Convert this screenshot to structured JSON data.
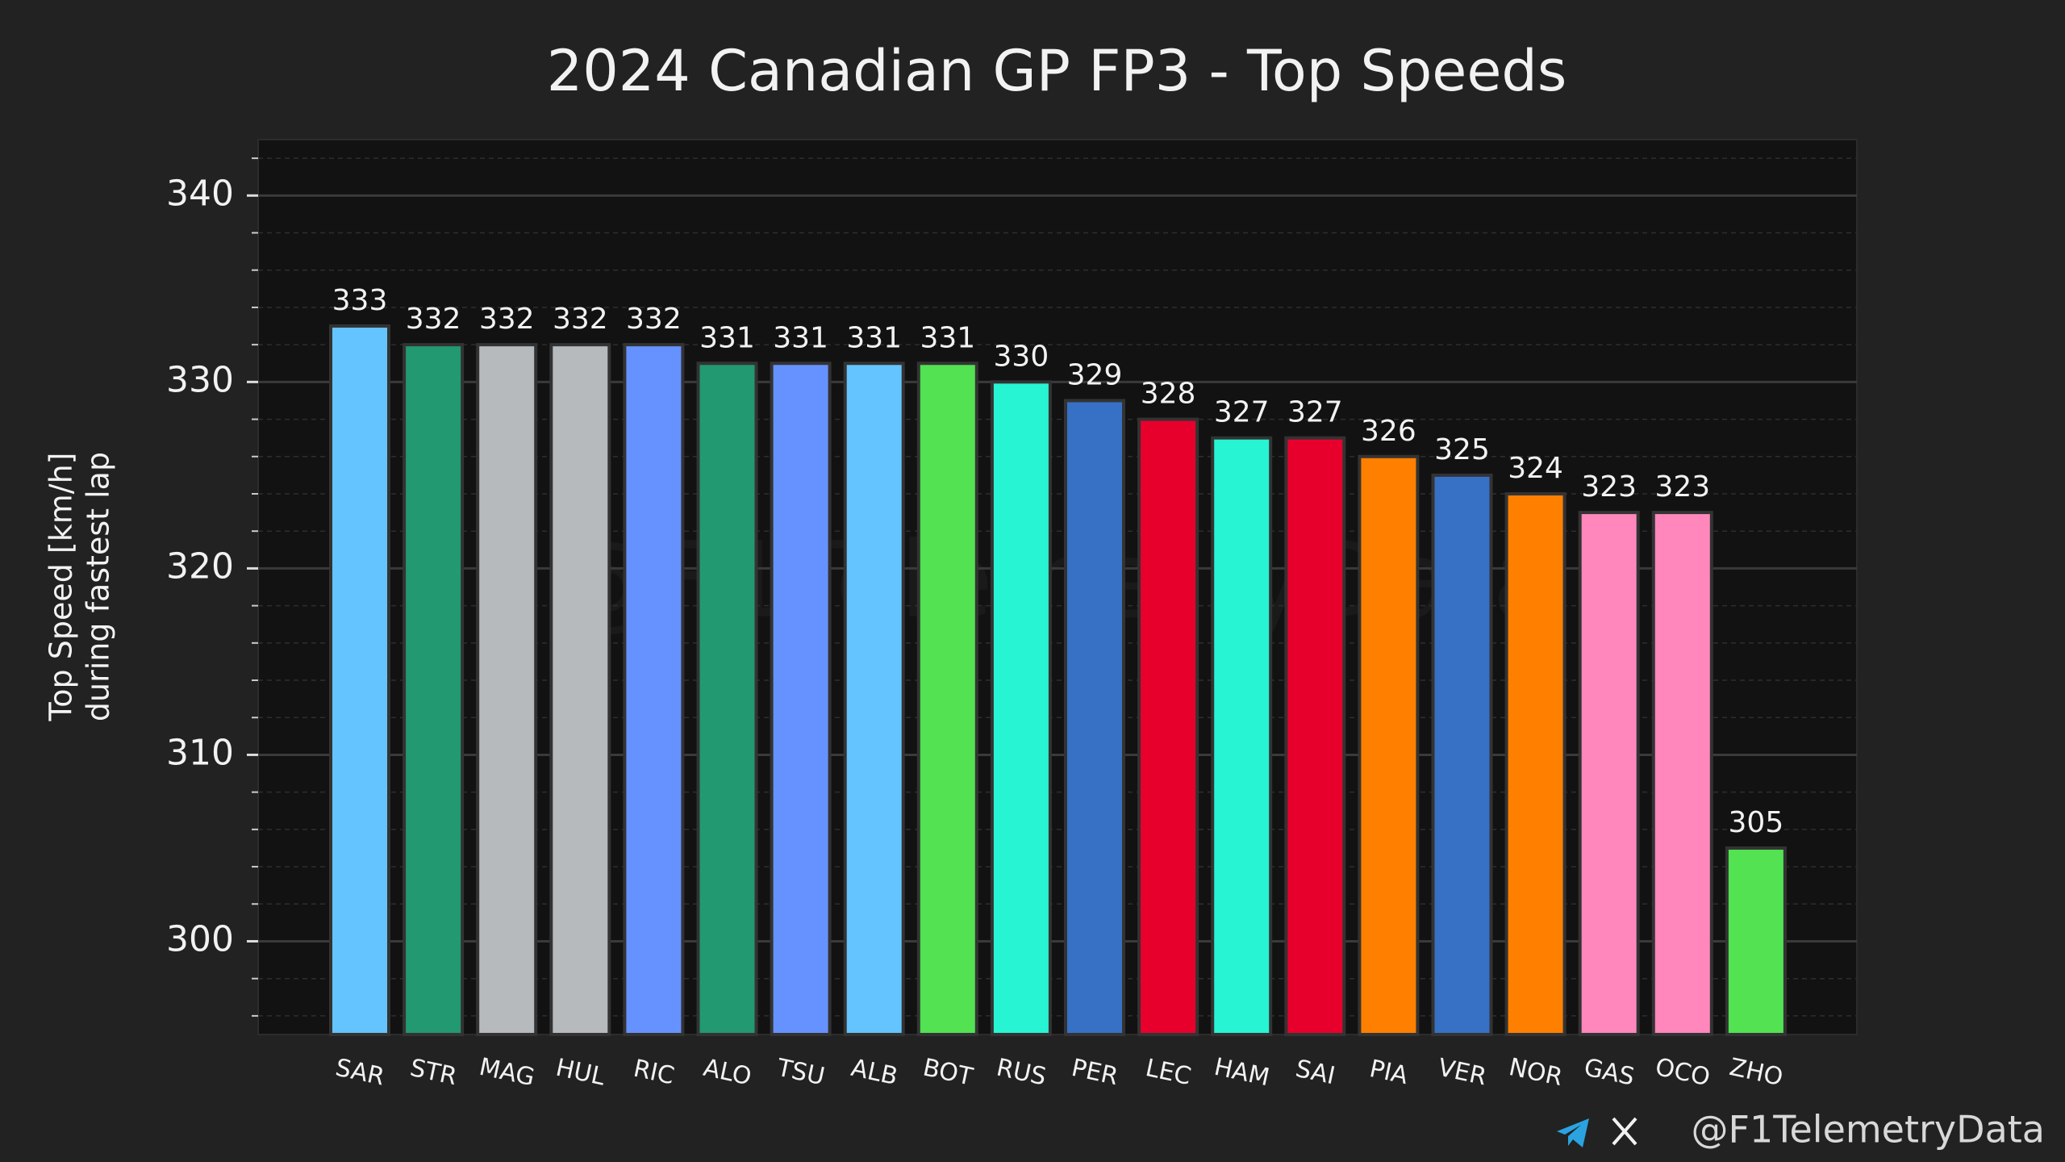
{
  "chart_data": {
    "type": "bar",
    "title": "2024 Canadian GP FP3 - Top Speeds",
    "ylabel": [
      "Top Speed [km/h]",
      "during fastest lap"
    ],
    "categories": [
      "SAR",
      "STR",
      "MAG",
      "HUL",
      "RIC",
      "ALO",
      "TSU",
      "ALB",
      "BOT",
      "RUS",
      "PER",
      "LEC",
      "HAM",
      "SAI",
      "PIA",
      "VER",
      "NOR",
      "GAS",
      "OCO",
      "ZHO"
    ],
    "values": [
      333,
      332,
      332,
      332,
      332,
      331,
      331,
      331,
      331,
      330,
      329,
      328,
      327,
      327,
      326,
      325,
      324,
      323,
      323,
      305
    ],
    "colors": [
      "#64c4ff",
      "#229971",
      "#b6babd",
      "#b6babd",
      "#6692ff",
      "#229971",
      "#6692ff",
      "#64c4ff",
      "#52e252",
      "#27f4d2",
      "#3671c6",
      "#e8002d",
      "#27f4d2",
      "#e8002d",
      "#ff8000",
      "#3671c6",
      "#ff8000",
      "#ff87bc",
      "#ff87bc",
      "#52e252"
    ],
    "ylim": [
      295,
      343
    ],
    "yticks": [
      300,
      310,
      320,
      330,
      340
    ],
    "yticks_minor": [
      296,
      298,
      302,
      304,
      306,
      308,
      312,
      314,
      316,
      318,
      322,
      324,
      326,
      328,
      332,
      334,
      336,
      338,
      342
    ],
    "grid": true,
    "watermark": "@F1TelemetryData",
    "footer": "@F1TelemetryData"
  }
}
